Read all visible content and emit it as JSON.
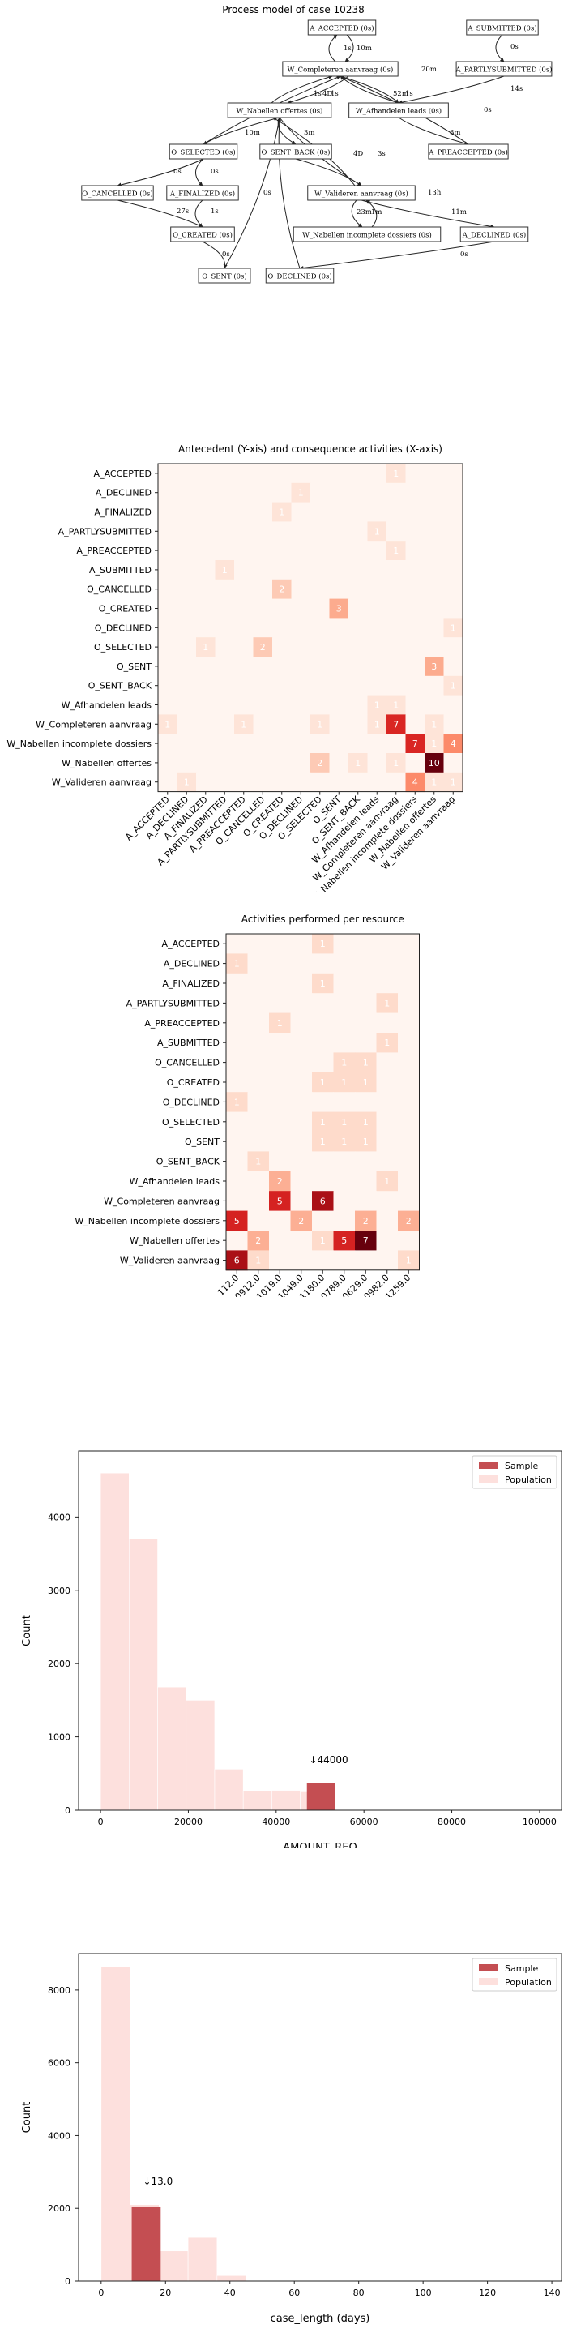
{
  "process_model": {
    "title": "Process model of case 10238",
    "nodes": [
      {
        "id": "A_ACCEPTED",
        "label": "A_ACCEPTED (0s)"
      },
      {
        "id": "A_SUBMITTED",
        "label": "A_SUBMITTED (0s)"
      },
      {
        "id": "W_Completeren",
        "label": "W_Completeren aanvraag (0s)"
      },
      {
        "id": "A_PARTLYSUBMITTED",
        "label": "A_PARTLYSUBMITTED (0s)"
      },
      {
        "id": "W_Nabellen_offertes",
        "label": "W_Nabellen offertes (0s)"
      },
      {
        "id": "W_Afhandelen",
        "label": "W_Afhandelen leads (0s)"
      },
      {
        "id": "O_SELECTED",
        "label": "O_SELECTED (0s)"
      },
      {
        "id": "O_SENT_BACK",
        "label": "O_SENT_BACK (0s)"
      },
      {
        "id": "A_PREACCEPTED",
        "label": "A_PREACCEPTED (0s)"
      },
      {
        "id": "O_CANCELLED",
        "label": "O_CANCELLED (0s)"
      },
      {
        "id": "A_FINALIZED",
        "label": "A_FINALIZED (0s)"
      },
      {
        "id": "W_Valideren",
        "label": "W_Valideren aanvraag (0s)"
      },
      {
        "id": "O_CREATED",
        "label": "O_CREATED (0s)"
      },
      {
        "id": "W_Nabellen_incomplete",
        "label": "W_Nabellen incomplete dossiers (0s)"
      },
      {
        "id": "A_DECLINED",
        "label": "A_DECLINED (0s)"
      },
      {
        "id": "O_SENT",
        "label": "O_SENT (0s)"
      },
      {
        "id": "O_DECLINED",
        "label": "O_DECLINED (0s)"
      }
    ],
    "edge_labels": [
      "1s",
      "10m",
      "0s",
      "20m",
      "52m",
      "1s",
      "14s",
      "4D",
      "1s",
      "6h",
      "27m",
      "2m",
      "10m",
      "3m",
      "8m",
      "0s",
      "0s",
      "4D",
      "3s",
      "0s",
      "1s",
      "27s",
      "5s",
      "23m",
      "1m",
      "13h",
      "11m",
      "0s",
      "0s",
      "0s",
      "1s"
    ]
  },
  "colors": {
    "heat_low": "#fff5f0",
    "heat_high": "#67000d",
    "sample_bar": "#c44e52",
    "population_bar": "#fde0dd"
  },
  "chart_data": [
    {
      "type": "heatmap",
      "title": "Antecedent (Y-xis) and consequence activities (X-axis)",
      "rows": [
        "A_ACCEPTED",
        "A_DECLINED",
        "A_FINALIZED",
        "A_PARTLYSUBMITTED",
        "A_PREACCEPTED",
        "A_SUBMITTED",
        "O_CANCELLED",
        "O_CREATED",
        "O_DECLINED",
        "O_SELECTED",
        "O_SENT",
        "O_SENT_BACK",
        "W_Afhandelen leads",
        "W_Completeren aanvraag",
        "W_Nabellen incomplete dossiers",
        "W_Nabellen offertes",
        "W_Valideren aanvraag"
      ],
      "columns": [
        "A_ACCEPTED",
        "A_DECLINED",
        "A_FINALIZED",
        "A_PARTLYSUBMITTED",
        "A_PREACCEPTED",
        "O_CANCELLED",
        "O_CREATED",
        "O_DECLINED",
        "O_SELECTED",
        "O_SENT",
        "O_SENT_BACK",
        "W_Afhandelen leads",
        "W_Completeren aanvraag",
        "W_Nabellen incomplete dossiers",
        "W_Nabellen offertes",
        "W_Valideren aanvraag"
      ],
      "values": [
        [
          0,
          0,
          0,
          0,
          0,
          0,
          0,
          0,
          0,
          0,
          0,
          0,
          1,
          0,
          0,
          0
        ],
        [
          0,
          0,
          0,
          0,
          0,
          0,
          0,
          1,
          0,
          0,
          0,
          0,
          0,
          0,
          0,
          0
        ],
        [
          0,
          0,
          0,
          0,
          0,
          0,
          1,
          0,
          0,
          0,
          0,
          0,
          0,
          0,
          0,
          0
        ],
        [
          0,
          0,
          0,
          0,
          0,
          0,
          0,
          0,
          0,
          0,
          0,
          1,
          0,
          0,
          0,
          0
        ],
        [
          0,
          0,
          0,
          0,
          0,
          0,
          0,
          0,
          0,
          0,
          0,
          0,
          1,
          0,
          0,
          0
        ],
        [
          0,
          0,
          0,
          1,
          0,
          0,
          0,
          0,
          0,
          0,
          0,
          0,
          0,
          0,
          0,
          0
        ],
        [
          0,
          0,
          0,
          0,
          0,
          0,
          2,
          0,
          0,
          0,
          0,
          0,
          0,
          0,
          0,
          0
        ],
        [
          0,
          0,
          0,
          0,
          0,
          0,
          0,
          0,
          0,
          3,
          0,
          0,
          0,
          0,
          0,
          0
        ],
        [
          0,
          0,
          0,
          0,
          0,
          0,
          0,
          0,
          0,
          0,
          0,
          0,
          0,
          0,
          0,
          1
        ],
        [
          0,
          0,
          1,
          0,
          0,
          2,
          0,
          0,
          0,
          0,
          0,
          0,
          0,
          0,
          0,
          0
        ],
        [
          0,
          0,
          0,
          0,
          0,
          0,
          0,
          0,
          0,
          0,
          0,
          0,
          0,
          0,
          3,
          0
        ],
        [
          0,
          0,
          0,
          0,
          0,
          0,
          0,
          0,
          0,
          0,
          0,
          0,
          0,
          0,
          0,
          1
        ],
        [
          0,
          0,
          0,
          0,
          0,
          0,
          0,
          0,
          0,
          0,
          0,
          1,
          1,
          0,
          0,
          0
        ],
        [
          1,
          0,
          0,
          0,
          1,
          0,
          0,
          0,
          1,
          0,
          0,
          1,
          7,
          0,
          1,
          0
        ],
        [
          0,
          0,
          0,
          0,
          0,
          0,
          0,
          0,
          0,
          0,
          0,
          0,
          0,
          7,
          1,
          4
        ],
        [
          0,
          0,
          0,
          0,
          0,
          0,
          0,
          0,
          2,
          0,
          1,
          0,
          1,
          0,
          10,
          0
        ],
        [
          0,
          1,
          0,
          0,
          0,
          0,
          0,
          0,
          0,
          0,
          0,
          0,
          0,
          4,
          1,
          1
        ]
      ],
      "vmin": 0,
      "vmax": 10
    },
    {
      "type": "heatmap",
      "title": "Activities performed per resource",
      "rows": [
        "A_ACCEPTED",
        "A_DECLINED",
        "A_FINALIZED",
        "A_PARTLYSUBMITTED",
        "A_PREACCEPTED",
        "A_SUBMITTED",
        "O_CANCELLED",
        "O_CREATED",
        "O_DECLINED",
        "O_SELECTED",
        "O_SENT",
        "O_SENT_BACK",
        "W_Afhandelen leads",
        "W_Completeren aanvraag",
        "W_Nabellen incomplete dossiers",
        "W_Nabellen offertes",
        "W_Valideren aanvraag"
      ],
      "columns": [
        "112.0",
        "10912.0",
        "11019.0",
        "11049.0",
        "11180.0",
        "10789.0",
        "10629.0",
        "10982.0",
        "11259.0"
      ],
      "values": [
        [
          0,
          0,
          0,
          0,
          1,
          0,
          0,
          0,
          0
        ],
        [
          1,
          0,
          0,
          0,
          0,
          0,
          0,
          0,
          0
        ],
        [
          0,
          0,
          0,
          0,
          1,
          0,
          0,
          0,
          0
        ],
        [
          0,
          0,
          0,
          0,
          0,
          0,
          0,
          1,
          0
        ],
        [
          0,
          0,
          1,
          0,
          0,
          0,
          0,
          0,
          0
        ],
        [
          0,
          0,
          0,
          0,
          0,
          0,
          0,
          1,
          0
        ],
        [
          0,
          0,
          0,
          0,
          0,
          1,
          1,
          0,
          0
        ],
        [
          0,
          0,
          0,
          0,
          1,
          1,
          1,
          0,
          0
        ],
        [
          1,
          0,
          0,
          0,
          0,
          0,
          0,
          0,
          0
        ],
        [
          0,
          0,
          0,
          0,
          1,
          1,
          1,
          0,
          0
        ],
        [
          0,
          0,
          0,
          0,
          1,
          1,
          1,
          0,
          0
        ],
        [
          0,
          1,
          0,
          0,
          0,
          0,
          0,
          0,
          0
        ],
        [
          0,
          0,
          2,
          0,
          0,
          0,
          0,
          1,
          0
        ],
        [
          0,
          0,
          5,
          0,
          6,
          0,
          0,
          0,
          0
        ],
        [
          5,
          0,
          0,
          2,
          0,
          0,
          2,
          0,
          2
        ],
        [
          0,
          2,
          0,
          0,
          1,
          5,
          7,
          0,
          0
        ],
        [
          6,
          1,
          0,
          0,
          0,
          0,
          0,
          0,
          1
        ]
      ],
      "vmin": 0,
      "vmax": 7
    },
    {
      "type": "bar",
      "title": "",
      "xlabel": "AMOUNT_REQ",
      "ylabel": "Count",
      "xlim": [
        -5000,
        105000
      ],
      "ylim": [
        0,
        4900
      ],
      "xticks": [
        0,
        20000,
        40000,
        60000,
        80000,
        100000
      ],
      "yticks": [
        0,
        1000,
        2000,
        3000,
        4000
      ],
      "bin_width": 6500,
      "series": [
        {
          "name": "Sample",
          "bins": [
            {
              "x0": 47000,
              "count": 370
            }
          ]
        },
        {
          "name": "Population",
          "bins": [
            {
              "x0": 0,
              "count": 4600
            },
            {
              "x0": 6500,
              "count": 3700
            },
            {
              "x0": 13000,
              "count": 1680
            },
            {
              "x0": 19500,
              "count": 1500
            },
            {
              "x0": 26000,
              "count": 560
            },
            {
              "x0": 32500,
              "count": 260
            },
            {
              "x0": 39000,
              "count": 270
            },
            {
              "x0": 45500,
              "count": 250
            }
          ]
        }
      ],
      "annotation": {
        "text": "↓44000",
        "x": 47500,
        "y": 640
      },
      "legend": "top-right"
    },
    {
      "type": "bar",
      "title": "",
      "xlabel": "case_length (days)",
      "ylabel": "Count",
      "xlim": [
        -7,
        143
      ],
      "ylim": [
        0,
        9000
      ],
      "xticks": [
        0,
        20,
        40,
        60,
        80,
        100,
        120,
        140
      ],
      "yticks": [
        0,
        2000,
        4000,
        6000,
        8000
      ],
      "bin_width": 9,
      "series": [
        {
          "name": "Sample",
          "bins": [
            {
              "x0": 9.5,
              "count": 2050
            }
          ]
        },
        {
          "name": "Population",
          "bins": [
            {
              "x0": 0,
              "count": 8650
            },
            {
              "x0": 9,
              "count": 2100
            },
            {
              "x0": 18,
              "count": 830
            },
            {
              "x0": 27,
              "count": 1200
            },
            {
              "x0": 36,
              "count": 150
            }
          ]
        }
      ],
      "annotation": {
        "text": "↓13.0",
        "x": 13,
        "y": 2650
      },
      "legend": "top-right"
    }
  ]
}
